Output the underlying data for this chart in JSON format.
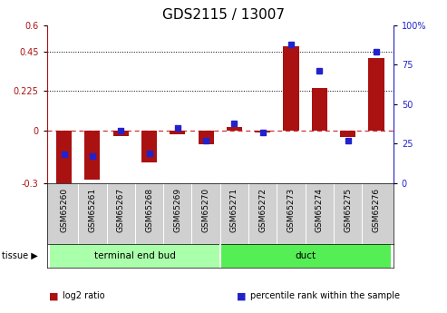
{
  "title": "GDS2115 / 13007",
  "samples": [
    "GSM65260",
    "GSM65261",
    "GSM65267",
    "GSM65268",
    "GSM65269",
    "GSM65270",
    "GSM65271",
    "GSM65272",
    "GSM65273",
    "GSM65274",
    "GSM65275",
    "GSM65276"
  ],
  "log2_ratio": [
    -0.32,
    -0.28,
    -0.03,
    -0.18,
    -0.02,
    -0.08,
    0.02,
    -0.01,
    0.48,
    0.24,
    -0.04,
    0.41
  ],
  "pct_rank": [
    18,
    17,
    33,
    19,
    35,
    27,
    38,
    32,
    88,
    71,
    27,
    83
  ],
  "tissue_groups": [
    {
      "label": "terminal end bud",
      "start": 0,
      "end": 5,
      "color": "#aaffaa"
    },
    {
      "label": "duct",
      "start": 6,
      "end": 11,
      "color": "#55ee55"
    }
  ],
  "ylim_left": [
    -0.3,
    0.6
  ],
  "ylim_right": [
    0,
    100
  ],
  "yticks_left": [
    -0.3,
    0,
    0.225,
    0.45,
    0.6
  ],
  "yticks_right": [
    0,
    25,
    50,
    75,
    100
  ],
  "hlines": [
    0.225,
    0.45
  ],
  "bar_color": "#aa1111",
  "dot_color": "#2222cc",
  "zero_line_color": "#cc3333",
  "plot_bg_color": "#ffffff",
  "title_fontsize": 11,
  "tick_fontsize": 7,
  "label_fontsize": 6.5,
  "legend_items": [
    {
      "label": "log2 ratio",
      "color": "#aa1111"
    },
    {
      "label": "percentile rank within the sample",
      "color": "#2222cc"
    }
  ]
}
